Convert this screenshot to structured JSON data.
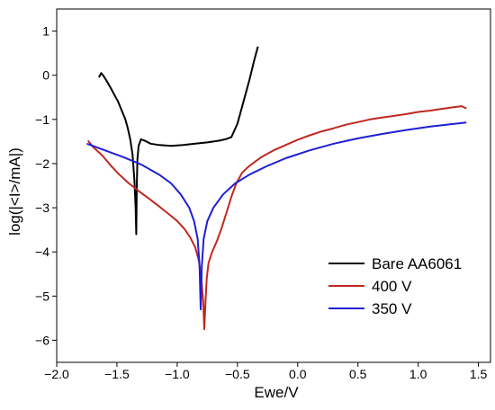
{
  "chart_data": {
    "type": "line",
    "title": "",
    "xlabel": "Ewe/V",
    "ylabel": "log(|<I>/mA|)",
    "xlim": [
      -2.0,
      1.6
    ],
    "ylim": [
      -6.5,
      1.5
    ],
    "xticks": [
      -2.0,
      -1.5,
      -1.0,
      -0.5,
      0.0,
      0.5,
      1.0,
      1.5
    ],
    "xtick_labels": [
      "−2.0",
      "−1.5",
      "−1.0",
      "−0.5",
      "0.0",
      "0.5",
      "1.0",
      "1.5"
    ],
    "yticks": [
      1,
      0,
      -1,
      -2,
      -3,
      -4,
      -5,
      -6
    ],
    "ytick_labels": [
      "1",
      "0",
      "−1",
      "−2",
      "−3",
      "−4",
      "−5",
      "−6"
    ],
    "grid": false,
    "legend_position": "lower-right",
    "series": [
      {
        "name": "Bare AA6061",
        "color": "#000000",
        "points": [
          [
            -1.65,
            -0.05
          ],
          [
            -1.63,
            0.05
          ],
          [
            -1.61,
            -0.02
          ],
          [
            -1.58,
            -0.15
          ],
          [
            -1.55,
            -0.3
          ],
          [
            -1.52,
            -0.45
          ],
          [
            -1.49,
            -0.6
          ],
          [
            -1.46,
            -0.8
          ],
          [
            -1.43,
            -1.0
          ],
          [
            -1.41,
            -1.2
          ],
          [
            -1.39,
            -1.45
          ],
          [
            -1.37,
            -1.8
          ],
          [
            -1.355,
            -2.4
          ],
          [
            -1.345,
            -3.0
          ],
          [
            -1.34,
            -3.6
          ],
          [
            -1.335,
            -2.5
          ],
          [
            -1.33,
            -1.9
          ],
          [
            -1.32,
            -1.6
          ],
          [
            -1.3,
            -1.45
          ],
          [
            -1.27,
            -1.48
          ],
          [
            -1.22,
            -1.55
          ],
          [
            -1.15,
            -1.58
          ],
          [
            -1.05,
            -1.6
          ],
          [
            -0.95,
            -1.58
          ],
          [
            -0.85,
            -1.55
          ],
          [
            -0.75,
            -1.52
          ],
          [
            -0.65,
            -1.48
          ],
          [
            -0.6,
            -1.45
          ],
          [
            -0.55,
            -1.4
          ],
          [
            -0.5,
            -1.1
          ],
          [
            -0.45,
            -0.6
          ],
          [
            -0.4,
            -0.1
          ],
          [
            -0.36,
            0.35
          ],
          [
            -0.33,
            0.65
          ]
        ]
      },
      {
        "name": "400 V",
        "color": "#c0281e",
        "points": [
          [
            -1.74,
            -1.48
          ],
          [
            -1.7,
            -1.62
          ],
          [
            -1.62,
            -1.82
          ],
          [
            -1.55,
            -2.05
          ],
          [
            -1.48,
            -2.25
          ],
          [
            -1.4,
            -2.45
          ],
          [
            -1.32,
            -2.62
          ],
          [
            -1.24,
            -2.78
          ],
          [
            -1.16,
            -2.95
          ],
          [
            -1.08,
            -3.12
          ],
          [
            -1.0,
            -3.3
          ],
          [
            -0.94,
            -3.48
          ],
          [
            -0.89,
            -3.68
          ],
          [
            -0.85,
            -3.9
          ],
          [
            -0.82,
            -4.2
          ],
          [
            -0.8,
            -4.6
          ],
          [
            -0.785,
            -5.1
          ],
          [
            -0.775,
            -5.75
          ],
          [
            -0.765,
            -5.1
          ],
          [
            -0.755,
            -4.6
          ],
          [
            -0.74,
            -4.25
          ],
          [
            -0.71,
            -4.0
          ],
          [
            -0.67,
            -3.75
          ],
          [
            -0.63,
            -3.45
          ],
          [
            -0.59,
            -3.1
          ],
          [
            -0.55,
            -2.75
          ],
          [
            -0.51,
            -2.45
          ],
          [
            -0.46,
            -2.2
          ],
          [
            -0.4,
            -2.05
          ],
          [
            -0.3,
            -1.85
          ],
          [
            -0.2,
            -1.7
          ],
          [
            -0.1,
            -1.58
          ],
          [
            0.0,
            -1.46
          ],
          [
            0.1,
            -1.36
          ],
          [
            0.2,
            -1.27
          ],
          [
            0.3,
            -1.2
          ],
          [
            0.4,
            -1.12
          ],
          [
            0.5,
            -1.06
          ],
          [
            0.6,
            -1.0
          ],
          [
            0.7,
            -0.96
          ],
          [
            0.8,
            -0.92
          ],
          [
            0.9,
            -0.88
          ],
          [
            1.0,
            -0.83
          ],
          [
            1.1,
            -0.8
          ],
          [
            1.2,
            -0.76
          ],
          [
            1.3,
            -0.72
          ],
          [
            1.36,
            -0.7
          ],
          [
            1.4,
            -0.75
          ]
        ]
      },
      {
        "name": "350 V",
        "color": "#1f1fd6",
        "points": [
          [
            -1.75,
            -1.55
          ],
          [
            -1.6,
            -1.7
          ],
          [
            -1.45,
            -1.85
          ],
          [
            -1.3,
            -2.02
          ],
          [
            -1.15,
            -2.25
          ],
          [
            -1.05,
            -2.45
          ],
          [
            -0.97,
            -2.7
          ],
          [
            -0.9,
            -3.0
          ],
          [
            -0.86,
            -3.3
          ],
          [
            -0.83,
            -3.7
          ],
          [
            -0.815,
            -4.3
          ],
          [
            -0.805,
            -5.3
          ],
          [
            -0.795,
            -4.3
          ],
          [
            -0.78,
            -3.7
          ],
          [
            -0.75,
            -3.3
          ],
          [
            -0.7,
            -3.0
          ],
          [
            -0.62,
            -2.7
          ],
          [
            -0.52,
            -2.45
          ],
          [
            -0.4,
            -2.25
          ],
          [
            -0.25,
            -2.05
          ],
          [
            -0.1,
            -1.88
          ],
          [
            0.1,
            -1.7
          ],
          [
            0.3,
            -1.55
          ],
          [
            0.5,
            -1.43
          ],
          [
            0.7,
            -1.33
          ],
          [
            0.9,
            -1.24
          ],
          [
            1.1,
            -1.16
          ],
          [
            1.3,
            -1.1
          ],
          [
            1.4,
            -1.07
          ]
        ]
      }
    ]
  }
}
